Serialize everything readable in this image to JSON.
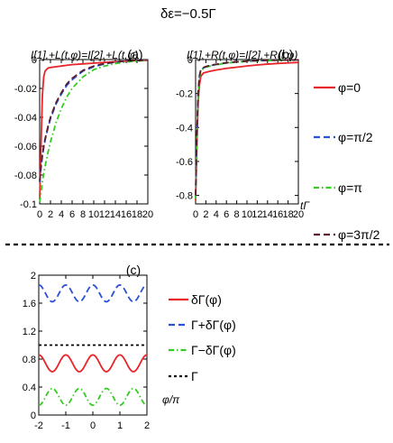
{
  "figure": {
    "title": "δε=−0.5Γ",
    "separator_style": "dashed"
  },
  "chart_data": [
    {
      "type": "line",
      "panel": "(a)",
      "ylabel": "I[1],+L(t,φ)=I[2],+L(t,φ)",
      "xlabel": "",
      "xlim": [
        0,
        20
      ],
      "ylim": [
        -0.1,
        0
      ],
      "xticks": [
        "0",
        "2",
        "4",
        "6",
        "8",
        "10",
        "12",
        "14",
        "16",
        "18",
        "20"
      ],
      "yticks": [
        "-0.1",
        "-0.08",
        "-0.06",
        "-0.04",
        "-0.02",
        "0"
      ],
      "x": [
        0,
        0.25,
        0.5,
        0.75,
        1,
        1.5,
        2,
        3,
        4,
        5,
        6,
        8,
        10,
        12,
        14,
        16,
        18,
        20
      ],
      "series": [
        {
          "name": "φ=0",
          "color": "#e8262a",
          "dash": "solid",
          "values": [
            -0.097,
            -0.06,
            -0.025,
            -0.012,
            -0.008,
            -0.006,
            -0.0055,
            -0.005,
            -0.0045,
            -0.004,
            -0.0035,
            -0.003,
            -0.0025,
            -0.002,
            -0.0015,
            -0.001,
            -0.0008,
            -0.0006
          ]
        },
        {
          "name": "φ=π/2",
          "color": "#2a52d8",
          "dash": "dashed",
          "values": [
            -0.085,
            -0.075,
            -0.067,
            -0.061,
            -0.056,
            -0.048,
            -0.041,
            -0.031,
            -0.024,
            -0.018,
            -0.014,
            -0.008,
            -0.005,
            -0.003,
            -0.0018,
            -0.001,
            -0.0006,
            -0.0004
          ]
        },
        {
          "name": "φ=π",
          "color": "#33cc22",
          "dash": "dashdot",
          "values": [
            -0.099,
            -0.092,
            -0.085,
            -0.079,
            -0.074,
            -0.065,
            -0.057,
            -0.044,
            -0.034,
            -0.026,
            -0.02,
            -0.012,
            -0.007,
            -0.0045,
            -0.0028,
            -0.0017,
            -0.001,
            -0.0006
          ]
        },
        {
          "name": "φ=3π/2",
          "color": "#5a1e2e",
          "dash": "dashed",
          "values": [
            -0.084,
            -0.074,
            -0.066,
            -0.06,
            -0.055,
            -0.047,
            -0.04,
            -0.03,
            -0.023,
            -0.017,
            -0.013,
            -0.0075,
            -0.0045,
            -0.0028,
            -0.0017,
            -0.001,
            -0.0006,
            -0.0004
          ]
        }
      ]
    },
    {
      "type": "line",
      "panel": "(b)",
      "ylabel": "I[1],+R(t,φ)=I[2],+R(t,φ)",
      "xlabel": "tΓ",
      "xlim": [
        0,
        20
      ],
      "ylim": [
        -0.85,
        0
      ],
      "xticks": [
        "0",
        "2",
        "4",
        "6",
        "8",
        "10",
        "12",
        "14",
        "16",
        "18",
        "20"
      ],
      "yticks": [
        "-0.8",
        "-0.6",
        "-0.4",
        "-0.2",
        "0"
      ],
      "x": [
        0,
        0.25,
        0.5,
        0.75,
        1,
        1.5,
        2,
        3,
        4,
        6,
        8,
        10,
        12,
        14,
        16,
        18,
        20
      ],
      "series": [
        {
          "name": "φ=0",
          "color": "#e8262a",
          "dash": "solid",
          "values": [
            -0.83,
            -0.5,
            -0.25,
            -0.15,
            -0.1,
            -0.08,
            -0.075,
            -0.068,
            -0.062,
            -0.052,
            -0.045,
            -0.038,
            -0.032,
            -0.027,
            -0.023,
            -0.02,
            -0.017
          ]
        },
        {
          "name": "φ=π/2",
          "color": "#2a52d8",
          "dash": "dashed",
          "values": [
            -0.81,
            -0.45,
            -0.2,
            -0.1,
            -0.065,
            -0.05,
            -0.043,
            -0.035,
            -0.029,
            -0.02,
            -0.014,
            -0.01,
            -0.007,
            -0.005,
            -0.0035,
            -0.0025,
            -0.002
          ]
        },
        {
          "name": "φ=π",
          "color": "#33cc22",
          "dash": "dashdot",
          "values": [
            -0.82,
            -0.47,
            -0.22,
            -0.11,
            -0.07,
            -0.053,
            -0.045,
            -0.037,
            -0.031,
            -0.021,
            -0.015,
            -0.011,
            -0.008,
            -0.0055,
            -0.004,
            -0.003,
            -0.002
          ]
        },
        {
          "name": "φ=3π/2",
          "color": "#5a1e2e",
          "dash": "dashed",
          "values": [
            -0.8,
            -0.44,
            -0.19,
            -0.095,
            -0.062,
            -0.048,
            -0.041,
            -0.033,
            -0.028,
            -0.019,
            -0.013,
            -0.009,
            -0.0065,
            -0.0045,
            -0.0032,
            -0.0023,
            -0.0018
          ]
        }
      ]
    },
    {
      "type": "line",
      "panel": "(c)",
      "xlabel": "φ/π",
      "ylabel": "",
      "xlim": [
        -2,
        2
      ],
      "ylim": [
        0,
        2
      ],
      "xticks": [
        "-2",
        "-1",
        "0",
        "1",
        "2"
      ],
      "yticks": [
        "0",
        "0.4",
        "0.8",
        "1.2",
        "1.6",
        "2"
      ],
      "series": [
        {
          "name": "δΓ(φ)",
          "color": "#e8262a",
          "dash": "solid",
          "formula": "0.74+0.12*cos(2*pi*x)"
        },
        {
          "name": "Γ+δΓ(φ)",
          "color": "#2a52d8",
          "dash": "dashed",
          "formula": "1.74+0.12*cos(2*pi*x)"
        },
        {
          "name": "Γ−δΓ(φ)",
          "color": "#33cc22",
          "dash": "dashdot",
          "formula": "0.26-0.12*cos(2*pi*x)"
        },
        {
          "name": "Γ",
          "color": "#000000",
          "dash": "dotted",
          "formula": "1"
        }
      ]
    }
  ]
}
